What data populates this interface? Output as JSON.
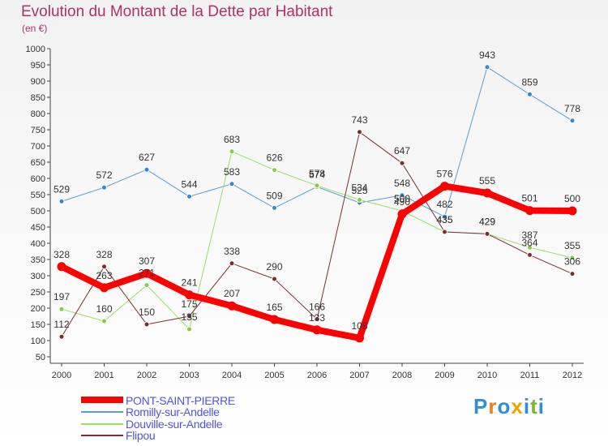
{
  "chart_data": {
    "type": "line",
    "title": "Evolution du Montant de la Dette par Habitant",
    "subtitle": "(en €)",
    "categories": [
      "2000",
      "2001",
      "2002",
      "2003",
      "2004",
      "2005",
      "2006",
      "2007",
      "2008",
      "2009",
      "2010",
      "2011",
      "2012"
    ],
    "ylim": [
      50,
      1000
    ],
    "yticks": [
      50,
      100,
      150,
      200,
      250,
      300,
      350,
      400,
      450,
      500,
      550,
      600,
      650,
      700,
      750,
      800,
      850,
      900,
      950,
      1000
    ],
    "grid": false,
    "series": [
      {
        "name": "Romilly-sur-Andelle",
        "color": "#5b9bd5",
        "marker": "#3a86c8",
        "width": 1,
        "values": [
          529,
          572,
          627,
          544,
          583,
          509,
          574,
          525,
          548,
          482,
          943,
          859,
          778
        ]
      },
      {
        "name": "Douville-sur-Andelle",
        "color": "#99dd66",
        "marker": "#88cc44",
        "width": 1,
        "values": [
          197,
          160,
          271,
          135,
          683,
          626,
          578,
          534,
          500,
          435,
          429,
          387,
          355
        ]
      },
      {
        "name": "Flipou",
        "color": "#7a2f2f",
        "marker": "#7a2f2f",
        "width": 1,
        "values": [
          112,
          328,
          150,
          175,
          338,
          290,
          166,
          743,
          647,
          435,
          429,
          364,
          306
        ]
      },
      {
        "name": "PONT-SAINT-PIERRE",
        "color": "#ff0000",
        "marker": "#ff0000",
        "width": 8,
        "values": [
          328,
          263,
          307,
          241,
          207,
          165,
          133,
          108,
          490,
          576,
          555,
          501,
          500
        ]
      }
    ],
    "point_labels": [
      {
        "s": "Romilly-sur-Andelle",
        "i": 0,
        "t": "529"
      },
      {
        "s": "Romilly-sur-Andelle",
        "i": 1,
        "t": "572"
      },
      {
        "s": "Romilly-sur-Andelle",
        "i": 2,
        "t": "627"
      },
      {
        "s": "Romilly-sur-Andelle",
        "i": 3,
        "t": "544"
      },
      {
        "s": "Romilly-sur-Andelle",
        "i": 4,
        "t": "583"
      },
      {
        "s": "Romilly-sur-Andelle",
        "i": 5,
        "t": "509"
      },
      {
        "s": "Romilly-sur-Andelle",
        "i": 6,
        "t": "574"
      },
      {
        "s": "Romilly-sur-Andelle",
        "i": 7,
        "t": "525"
      },
      {
        "s": "Romilly-sur-Andelle",
        "i": 8,
        "t": "548"
      },
      {
        "s": "Romilly-sur-Andelle",
        "i": 9,
        "t": "482"
      },
      {
        "s": "Romilly-sur-Andelle",
        "i": 10,
        "t": "943"
      },
      {
        "s": "Romilly-sur-Andelle",
        "i": 11,
        "t": "859"
      },
      {
        "s": "Romilly-sur-Andelle",
        "i": 12,
        "t": "778"
      },
      {
        "s": "Douville-sur-Andelle",
        "i": 0,
        "t": "197"
      },
      {
        "s": "Douville-sur-Andelle",
        "i": 1,
        "t": "160"
      },
      {
        "s": "Douville-sur-Andelle",
        "i": 2,
        "t": "271"
      },
      {
        "s": "Douville-sur-Andelle",
        "i": 3,
        "t": "135"
      },
      {
        "s": "Douville-sur-Andelle",
        "i": 4,
        "t": "683"
      },
      {
        "s": "Douville-sur-Andelle",
        "i": 5,
        "t": "626"
      },
      {
        "s": "Douville-sur-Andelle",
        "i": 6,
        "t": "578"
      },
      {
        "s": "Douville-sur-Andelle",
        "i": 7,
        "t": "534"
      },
      {
        "s": "Douville-sur-Andelle",
        "i": 8,
        "t": "500"
      },
      {
        "s": "Douville-sur-Andelle",
        "i": 9,
        "t": "435"
      },
      {
        "s": "Douville-sur-Andelle",
        "i": 10,
        "t": "429"
      },
      {
        "s": "Douville-sur-Andelle",
        "i": 11,
        "t": "387"
      },
      {
        "s": "Douville-sur-Andelle",
        "i": 12,
        "t": "355"
      },
      {
        "s": "Flipou",
        "i": 0,
        "t": "112"
      },
      {
        "s": "Flipou",
        "i": 1,
        "t": "328"
      },
      {
        "s": "Flipou",
        "i": 2,
        "t": "150"
      },
      {
        "s": "Flipou",
        "i": 3,
        "t": "175"
      },
      {
        "s": "Flipou",
        "i": 4,
        "t": "338"
      },
      {
        "s": "Flipou",
        "i": 5,
        "t": "290"
      },
      {
        "s": "Flipou",
        "i": 6,
        "t": "166"
      },
      {
        "s": "Flipou",
        "i": 7,
        "t": "743"
      },
      {
        "s": "Flipou",
        "i": 8,
        "t": "647"
      },
      {
        "s": "Flipou",
        "i": 9,
        "t": "435"
      },
      {
        "s": "Flipou",
        "i": 10,
        "t": "429"
      },
      {
        "s": "Flipou",
        "i": 11,
        "t": "364"
      },
      {
        "s": "Flipou",
        "i": 12,
        "t": "306"
      },
      {
        "s": "PONT-SAINT-PIERRE",
        "i": 0,
        "t": "328"
      },
      {
        "s": "PONT-SAINT-PIERRE",
        "i": 1,
        "t": "263"
      },
      {
        "s": "PONT-SAINT-PIERRE",
        "i": 2,
        "t": "307"
      },
      {
        "s": "PONT-SAINT-PIERRE",
        "i": 3,
        "t": "241"
      },
      {
        "s": "PONT-SAINT-PIERRE",
        "i": 4,
        "t": "207"
      },
      {
        "s": "PONT-SAINT-PIERRE",
        "i": 5,
        "t": "165"
      },
      {
        "s": "PONT-SAINT-PIERRE",
        "i": 6,
        "t": "133"
      },
      {
        "s": "PONT-SAINT-PIERRE",
        "i": 7,
        "t": "108"
      },
      {
        "s": "PONT-SAINT-PIERRE",
        "i": 8,
        "t": "490"
      },
      {
        "s": "PONT-SAINT-PIERRE",
        "i": 9,
        "t": "576"
      },
      {
        "s": "PONT-SAINT-PIERRE",
        "i": 10,
        "t": "555"
      },
      {
        "s": "PONT-SAINT-PIERRE",
        "i": 11,
        "t": "501"
      },
      {
        "s": "PONT-SAINT-PIERRE",
        "i": 12,
        "t": "500"
      }
    ],
    "legend": [
      {
        "name": "PONT-SAINT-PIERRE",
        "color": "#ff0000",
        "thick": true
      },
      {
        "name": "Romilly-sur-Andelle",
        "color": "#5b9bd5",
        "thick": false
      },
      {
        "name": "Douville-sur-Andelle",
        "color": "#99dd66",
        "thick": false
      },
      {
        "name": "Flipou",
        "color": "#7a2f2f",
        "thick": false
      }
    ],
    "legend_position": "bottom-left"
  },
  "brand": {
    "text": "Proxiti",
    "letters": [
      "P",
      "r",
      "o",
      "x",
      "i",
      "t",
      "i"
    ],
    "colors": [
      "#2f8fd6",
      "#f07c1a",
      "#2f8fd6",
      "#e8a800",
      "#2f8fd6",
      "#79b52f",
      "#2f8fd6"
    ]
  }
}
